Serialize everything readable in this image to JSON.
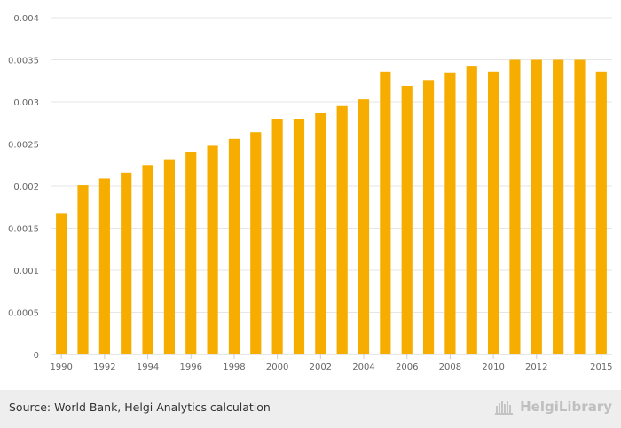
{
  "chart_data": {
    "type": "bar",
    "categories": [
      "1990",
      "1991",
      "1992",
      "1993",
      "1994",
      "1995",
      "1996",
      "1997",
      "1998",
      "1999",
      "2000",
      "2001",
      "2002",
      "2003",
      "2004",
      "2005",
      "2006",
      "2007",
      "2008",
      "2009",
      "2010",
      "2011",
      "2012",
      "2013",
      "2014",
      "2015"
    ],
    "values": [
      0.00168,
      0.00201,
      0.00209,
      0.00216,
      0.00225,
      0.00232,
      0.0024,
      0.00248,
      0.00256,
      0.00264,
      0.0028,
      0.0028,
      0.00287,
      0.00295,
      0.00303,
      0.00336,
      0.00319,
      0.00326,
      0.00335,
      0.00342,
      0.00336,
      0.0035,
      0.0035,
      0.0035,
      0.0035,
      0.00336
    ],
    "x_tick_labels": [
      "1990",
      "1992",
      "1994",
      "1996",
      "1998",
      "2000",
      "2002",
      "2004",
      "2006",
      "2008",
      "2010",
      "2012",
      "2015"
    ],
    "y_ticks": [
      "0",
      "0.0005",
      "0.001",
      "0.0015",
      "0.002",
      "0.0025",
      "0.003",
      "0.0035",
      "0.004"
    ],
    "ylim": [
      0,
      0.004
    ],
    "grid": true,
    "bar_color": "#f6ad00",
    "title": "",
    "xlabel": "",
    "ylabel": ""
  },
  "footer": {
    "source": "Source: World Bank, Helgi Analytics calculation",
    "logo_text": "HelgiLibrary"
  }
}
